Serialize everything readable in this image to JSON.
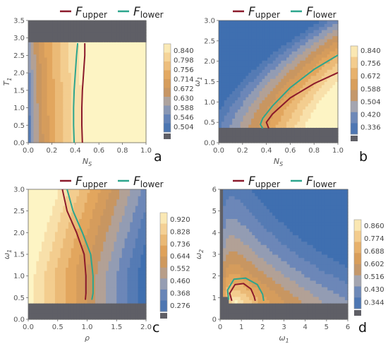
{
  "colors": {
    "upper": "#8b1a2b",
    "lower": "#2ca58d",
    "mask": "#5f5f66",
    "high": "#fdf4c4",
    "mid": "#e0a35a",
    "low": "#3f6fb0"
  },
  "legend": {
    "upper_main": "F",
    "upper_sub": "upper",
    "lower_main": "F",
    "lower_sub": "lower"
  },
  "chart_data": [
    {
      "panel": "a",
      "type": "heatmap",
      "xlabel": "N",
      "xlabel_sub": "S",
      "ylabel": "T",
      "ylabel_sub": "1",
      "xlim": [
        0.0,
        1.0
      ],
      "ylim": [
        0.0,
        3.5
      ],
      "x_ticks": [
        "0.0",
        "0.2",
        "0.4",
        "0.6",
        "0.8",
        "1.0"
      ],
      "y_ticks": [
        "0.0",
        "0.5",
        "1.0",
        "1.5",
        "2.0",
        "2.5",
        "3.0",
        "3.5"
      ],
      "colorbar_ticks": [
        "0.504",
        "0.546",
        "0.588",
        "0.630",
        "0.672",
        "0.714",
        "0.756",
        "0.798",
        "0.840"
      ],
      "value_range": [
        0.48,
        0.87
      ],
      "masked_region": "T1 > 2.85 (gray band)",
      "series": [
        {
          "name": "F_upper",
          "points": [
            [
              0.46,
              0.0
            ],
            [
              0.455,
              0.5
            ],
            [
              0.455,
              1.0
            ],
            [
              0.46,
              1.5
            ],
            [
              0.47,
              2.0
            ],
            [
              0.48,
              2.5
            ],
            [
              0.48,
              2.85
            ]
          ]
        },
        {
          "name": "F_lower",
          "points": [
            [
              0.39,
              0.0
            ],
            [
              0.385,
              0.5
            ],
            [
              0.385,
              1.0
            ],
            [
              0.39,
              1.5
            ],
            [
              0.4,
              2.0
            ],
            [
              0.41,
              2.5
            ],
            [
              0.42,
              2.85
            ]
          ]
        }
      ]
    },
    {
      "panel": "b",
      "type": "heatmap",
      "xlabel": "N",
      "xlabel_sub": "S",
      "ylabel": "ω",
      "ylabel_sub": "1",
      "xlim": [
        0.0,
        1.0
      ],
      "ylim": [
        0.0,
        3.0
      ],
      "x_ticks": [
        "0.0",
        "0.2",
        "0.4",
        "0.6",
        "0.8",
        "1.0"
      ],
      "y_ticks": [
        "0.0",
        "0.5",
        "1.0",
        "1.5",
        "2.0",
        "2.5",
        "3.0"
      ],
      "colorbar_ticks": [
        "0.336",
        "0.420",
        "0.504",
        "0.588",
        "0.672",
        "0.756",
        "0.840"
      ],
      "value_range": [
        0.29,
        0.87
      ],
      "masked_region": "ω1 < 0.35 (gray band)",
      "series": [
        {
          "name": "F_upper",
          "points": [
            [
              1.0,
              1.72
            ],
            [
              0.8,
              1.45
            ],
            [
              0.6,
              1.1
            ],
            [
              0.45,
              0.7
            ],
            [
              0.4,
              0.5
            ],
            [
              0.42,
              0.35
            ]
          ]
        },
        {
          "name": "F_lower",
          "points": [
            [
              1.0,
              2.15
            ],
            [
              0.8,
              1.8
            ],
            [
              0.6,
              1.35
            ],
            [
              0.45,
              0.9
            ],
            [
              0.37,
              0.6
            ],
            [
              0.35,
              0.45
            ],
            [
              0.37,
              0.35
            ]
          ]
        }
      ]
    },
    {
      "panel": "c",
      "type": "heatmap",
      "xlabel": "ρ",
      "xlabel_sub": "",
      "ylabel": "ω",
      "ylabel_sub": "1",
      "xlim": [
        0.0,
        2.0
      ],
      "ylim": [
        0.0,
        3.0
      ],
      "x_ticks": [
        "0.0",
        "0.5",
        "1.0",
        "1.5",
        "2.0"
      ],
      "y_ticks": [
        "0.0",
        "0.5",
        "1.0",
        "1.5",
        "2.0",
        "2.5",
        "3.0"
      ],
      "colorbar_ticks": [
        "0.276",
        "0.368",
        "0.460",
        "0.552",
        "0.644",
        "0.736",
        "0.828",
        "0.920"
      ],
      "value_range": [
        0.23,
        0.97
      ],
      "masked_region": "ω1 < 0.35 (gray band)",
      "series": [
        {
          "name": "F_upper",
          "points": [
            [
              0.58,
              3.0
            ],
            [
              0.66,
              2.5
            ],
            [
              0.82,
              2.0
            ],
            [
              0.95,
              1.5
            ],
            [
              0.98,
              1.0
            ],
            [
              0.98,
              0.6
            ],
            [
              0.97,
              0.45
            ]
          ]
        },
        {
          "name": "F_lower",
          "points": [
            [
              0.66,
              3.0
            ],
            [
              0.76,
              2.5
            ],
            [
              0.92,
              2.0
            ],
            [
              1.06,
              1.5
            ],
            [
              1.1,
              1.0
            ],
            [
              1.1,
              0.6
            ],
            [
              1.08,
              0.45
            ]
          ]
        }
      ]
    },
    {
      "panel": "d",
      "type": "heatmap",
      "xlabel": "ω",
      "xlabel_sub": "1",
      "ylabel": "ω",
      "ylabel_sub": "2",
      "xlim": [
        0,
        6
      ],
      "ylim": [
        0,
        6
      ],
      "x_ticks": [
        "0",
        "1",
        "2",
        "3",
        "4",
        "5",
        "6"
      ],
      "y_ticks": [
        "0",
        "1",
        "2",
        "3",
        "4",
        "5",
        "6"
      ],
      "colorbar_ticks": [
        "0.344",
        "0.430",
        "0.516",
        "0.602",
        "0.688",
        "0.774",
        "0.860"
      ],
      "value_range": [
        0.3,
        0.9
      ],
      "masked_region": "ω2 < ~0.8 and left edge (gray)",
      "series": [
        {
          "name": "F_upper",
          "points": [
            [
              0.55,
              0.85
            ],
            [
              0.45,
              1.2
            ],
            [
              0.7,
              1.6
            ],
            [
              1.1,
              1.65
            ],
            [
              1.45,
              1.4
            ],
            [
              1.6,
              1.05
            ],
            [
              1.65,
              0.85
            ]
          ]
        },
        {
          "name": "F_lower",
          "points": [
            [
              0.4,
              0.9
            ],
            [
              0.35,
              1.35
            ],
            [
              0.65,
              1.85
            ],
            [
              1.2,
              1.9
            ],
            [
              1.75,
              1.6
            ],
            [
              2.0,
              1.15
            ],
            [
              2.05,
              0.85
            ]
          ]
        }
      ]
    }
  ]
}
